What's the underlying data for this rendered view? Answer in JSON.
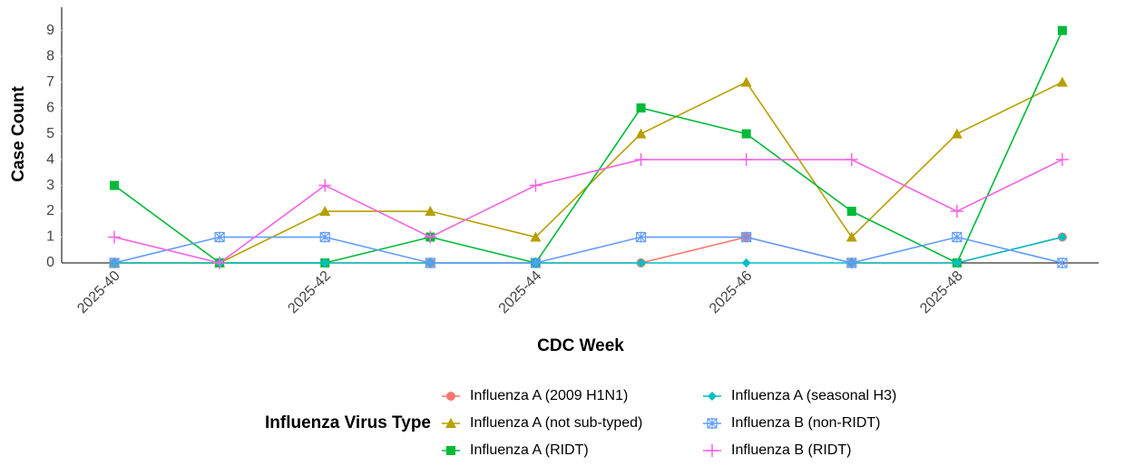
{
  "chart_data": {
    "type": "line",
    "x_label": "CDC Week",
    "y_label": "Case Count",
    "legend_title": "Influenza Virus Type",
    "categories": [
      "2025-40",
      null,
      "2025-42",
      null,
      "2025-44",
      null,
      "2025-46",
      null,
      "2025-48",
      null
    ],
    "ylim": [
      0,
      9.9
    ],
    "yticks": [
      0,
      1,
      2,
      3,
      4,
      5,
      6,
      7,
      8,
      9
    ],
    "grid": false,
    "series": [
      {
        "name": "Influenza A (2009 H1N1)",
        "color": "#F8766D",
        "marker": "circle",
        "values": [
          0,
          0,
          0,
          0,
          0,
          0,
          1,
          0,
          0,
          1
        ]
      },
      {
        "name": "Influenza A (not sub-typed)",
        "color": "#B79F00",
        "marker": "triangle",
        "values": [
          0,
          0,
          2,
          2,
          1,
          5,
          7,
          1,
          5,
          7
        ]
      },
      {
        "name": "Influenza A (RIDT)",
        "color": "#00BA38",
        "marker": "square",
        "values": [
          3,
          0,
          0,
          1,
          0,
          6,
          5,
          2,
          0,
          9
        ]
      },
      {
        "name": "Influenza A (seasonal H3)",
        "color": "#00BFC4",
        "marker": "diamond",
        "values": [
          0,
          0,
          0,
          0,
          0,
          0,
          0,
          0,
          0,
          1
        ]
      },
      {
        "name": "Influenza B (non-RIDT)",
        "color": "#619CFF",
        "marker": "boxx",
        "values": [
          0,
          1,
          1,
          0,
          0,
          1,
          1,
          0,
          1,
          0
        ]
      },
      {
        "name": "Influenza B (RIDT)",
        "color": "#F564E3",
        "marker": "plus",
        "values": [
          1,
          0,
          3,
          1,
          3,
          4,
          4,
          4,
          2,
          4
        ]
      }
    ]
  }
}
